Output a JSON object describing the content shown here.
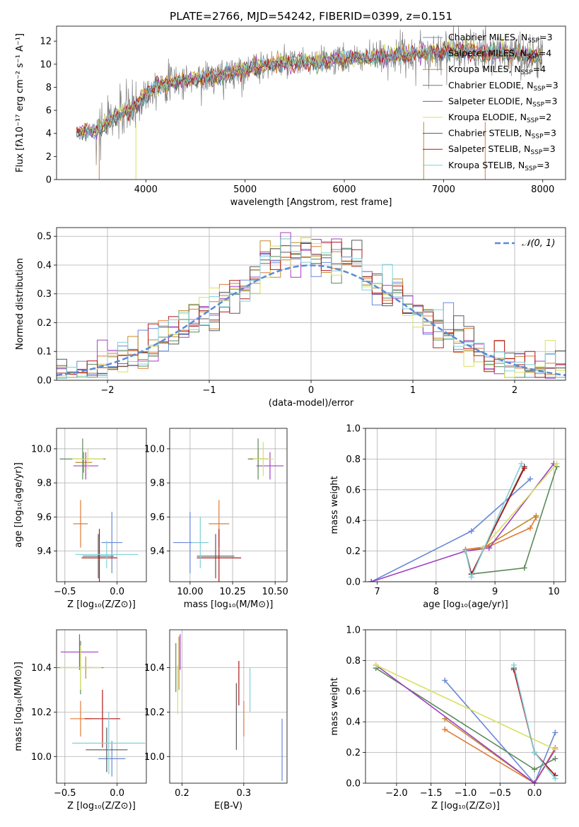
{
  "colors": [
    "#6a88d8",
    "#e07a36",
    "#c28a2a",
    "#5a8a5a",
    "#a040c0",
    "#d8e060",
    "#585858",
    "#b01818",
    "#80d0d8"
  ],
  "chart_data": [
    {
      "type": "line",
      "title": "PLATE=2766, MJD=54242, FIBERID=0399, z=0.151",
      "xlabel": "wavelength [Angstrom, rest frame]",
      "ylabel": "Flux [fλ10⁻¹⁷ erg cm⁻² s⁻¹ A⁻¹]",
      "xlim": [
        3100,
        8230
      ],
      "ylim": [
        0,
        13.3
      ],
      "xticks": [
        4000,
        5000,
        6000,
        7000,
        8000
      ],
      "yticks": [
        0,
        2,
        4,
        6,
        8,
        10,
        12
      ],
      "grid": false,
      "legend_position": "top-right",
      "spectrum_anchors": [
        [
          3300,
          4.1
        ],
        [
          3500,
          4.2
        ],
        [
          3700,
          5.5
        ],
        [
          3900,
          6.3
        ],
        [
          4000,
          7.5
        ],
        [
          4100,
          8.1
        ],
        [
          4300,
          8.5
        ],
        [
          4500,
          8.7
        ],
        [
          4700,
          8.9
        ],
        [
          4900,
          9.4
        ],
        [
          5100,
          9.7
        ],
        [
          5300,
          10.0
        ],
        [
          5500,
          10.1
        ],
        [
          5800,
          10.2
        ],
        [
          6000,
          10.4
        ],
        [
          6300,
          10.6
        ],
        [
          6600,
          10.8
        ],
        [
          6800,
          11.0
        ],
        [
          7000,
          11.1
        ],
        [
          7200,
          11.2
        ],
        [
          7400,
          11.0
        ],
        [
          7600,
          11.0
        ],
        [
          7800,
          10.8
        ],
        [
          8000,
          10.6
        ]
      ],
      "legend": [
        {
          "prefix": "Chabrier MILES, N",
          "sub": "SSP",
          "suffix": "=3"
        },
        {
          "prefix": "Salpeter MILES, N",
          "sub": "SSP",
          "suffix": "=4"
        },
        {
          "prefix": "Kroupa MILES, N",
          "sub": "SSP",
          "suffix": "=4"
        },
        {
          "prefix": "Chabrier ELODIE, N",
          "sub": "SSP",
          "suffix": "=3"
        },
        {
          "prefix": "Salpeter ELODIE, N",
          "sub": "SSP",
          "suffix": "=3"
        },
        {
          "prefix": "Kroupa ELODIE, N",
          "sub": "SSP",
          "suffix": "=2"
        },
        {
          "prefix": "Chabrier STELIB, N",
          "sub": "SSP",
          "suffix": "=3"
        },
        {
          "prefix": "Salpeter STELIB, N",
          "sub": "SSP",
          "suffix": "=3"
        },
        {
          "prefix": "Kroupa STELIB, N",
          "sub": "SSP",
          "suffix": "=3"
        }
      ]
    },
    {
      "type": "histogram",
      "xlabel": "(data-model)/error",
      "ylabel": "Normed distribution",
      "xlim": [
        -2.5,
        2.5
      ],
      "ylim": [
        0,
        0.53
      ],
      "xticks": [
        -2,
        -1,
        0,
        1,
        2
      ],
      "yticks": [
        0.0,
        0.1,
        0.2,
        0.3,
        0.4,
        0.5
      ],
      "grid": true,
      "legend": "𝒩(0, 1)",
      "legend_position": "top-right",
      "bin_width": 0.1
    },
    {
      "type": "errorbar",
      "xlabel": "Z [log₁₀(Z/Z⊙)]",
      "ylabel": "age  [log₁₀(age/yr)]",
      "xlim": [
        -0.58,
        0.28
      ],
      "ylim": [
        9.22,
        10.12
      ],
      "xticks": [
        -0.5,
        0.0
      ],
      "yticks": [
        9.4,
        9.6,
        9.8,
        10.0
      ],
      "grid": true,
      "points": [
        {
          "x": -0.05,
          "y": 9.45,
          "xerr": 0.1,
          "yerr": 0.18
        },
        {
          "x": -0.35,
          "y": 9.56,
          "xerr": 0.07,
          "yerr": 0.14
        },
        {
          "x": -0.32,
          "y": 9.92,
          "xerr": 0.08,
          "yerr": 0.06
        },
        {
          "x": -0.33,
          "y": 9.94,
          "xerr": 0.22,
          "yerr": 0.12
        },
        {
          "x": -0.3,
          "y": 9.9,
          "xerr": 0.12,
          "yerr": 0.08
        },
        {
          "x": -0.28,
          "y": 9.94,
          "xerr": 0.15,
          "yerr": 0.06
        },
        {
          "x": -0.18,
          "y": 9.37,
          "xerr": 0.15,
          "yerr": 0.13
        },
        {
          "x": -0.17,
          "y": 9.36,
          "xerr": 0.17,
          "yerr": 0.17
        },
        {
          "x": -0.1,
          "y": 9.38,
          "xerr": 0.3,
          "yerr": 0.08
        }
      ]
    },
    {
      "type": "errorbar",
      "xlabel": "mass [log₁₀(M/M⊙)]",
      "ylabel": "",
      "xlim": [
        9.88,
        10.57
      ],
      "ylim": [
        9.22,
        10.12
      ],
      "xticks": [
        10.0,
        10.25,
        10.5
      ],
      "yticks": [
        9.4,
        9.6,
        9.8,
        10.0
      ],
      "grid": true,
      "points": [
        {
          "x": 10.0,
          "y": 9.45,
          "xerr": 0.1,
          "yerr": 0.18
        },
        {
          "x": 10.17,
          "y": 9.56,
          "xerr": 0.06,
          "yerr": 0.14
        },
        {
          "x": 10.4,
          "y": 9.94,
          "xerr": 0.05,
          "yerr": 0.06
        },
        {
          "x": 10.4,
          "y": 9.94,
          "xerr": 0.06,
          "yerr": 0.12
        },
        {
          "x": 10.47,
          "y": 9.9,
          "xerr": 0.08,
          "yerr": 0.08
        },
        {
          "x": 10.43,
          "y": 9.94,
          "xerr": 0.06,
          "yerr": 0.1
        },
        {
          "x": 10.15,
          "y": 9.37,
          "xerr": 0.11,
          "yerr": 0.13
        },
        {
          "x": 10.17,
          "y": 9.36,
          "xerr": 0.13,
          "yerr": 0.17
        },
        {
          "x": 10.06,
          "y": 9.45,
          "xerr": 0.05,
          "yerr": 0.15
        }
      ]
    },
    {
      "type": "line",
      "xlabel": "age  [log₁₀(age/yr)]",
      "ylabel": "mass weight",
      "xlim": [
        6.8,
        10.2
      ],
      "ylim": [
        0,
        1.0
      ],
      "xticks": [
        7,
        8,
        9,
        10
      ],
      "yticks": [
        0.0,
        0.2,
        0.4,
        0.6,
        0.8,
        1.0
      ],
      "grid": true,
      "series": [
        {
          "x": [
            6.9,
            8.6,
            9.6
          ],
          "y": [
            0.0,
            0.33,
            0.67
          ]
        },
        {
          "x": [
            8.5,
            8.9,
            9.6,
            9.7
          ],
          "y": [
            0.21,
            0.23,
            0.35,
            0.42
          ]
        },
        {
          "x": [
            8.5,
            8.8,
            9.7
          ],
          "y": [
            0.2,
            0.22,
            0.43
          ]
        },
        {
          "x": [
            8.5,
            8.6,
            9.5,
            10.05
          ],
          "y": [
            0.2,
            0.05,
            0.09,
            0.75
          ]
        },
        {
          "x": [
            6.9,
            8.5,
            8.9,
            10.0
          ],
          "y": [
            0.0,
            0.2,
            0.22,
            0.77
          ]
        },
        {
          "x": [
            8.8,
            10.05
          ],
          "y": [
            0.22,
            0.77
          ]
        },
        {
          "x": [
            8.5,
            8.6,
            9.5
          ],
          "y": [
            0.2,
            0.05,
            0.75
          ]
        },
        {
          "x": [
            8.5,
            8.6,
            9.5
          ],
          "y": [
            0.2,
            0.05,
            0.74
          ]
        },
        {
          "x": [
            8.5,
            8.6,
            9.45
          ],
          "y": [
            0.2,
            0.03,
            0.77
          ]
        }
      ]
    },
    {
      "type": "errorbar",
      "xlabel": "Z [log₁₀(Z/Z⊙)]",
      "ylabel": "mass [log₁₀(M/M⊙)]",
      "xlim": [
        -0.58,
        0.28
      ],
      "ylim": [
        9.88,
        10.57
      ],
      "xticks": [
        -0.5,
        0.0
      ],
      "yticks": [
        10.0,
        10.2,
        10.4
      ],
      "grid": true,
      "points": [
        {
          "x": -0.05,
          "y": 9.99,
          "xerr": 0.13,
          "yerr": 0.08
        },
        {
          "x": -0.35,
          "y": 10.17,
          "xerr": 0.1,
          "yerr": 0.08
        },
        {
          "x": -0.3,
          "y": 10.4,
          "xerr": 0.05,
          "yerr": 0.05
        },
        {
          "x": -0.35,
          "y": 10.4,
          "xerr": 0.22,
          "yerr": 0.12
        },
        {
          "x": -0.36,
          "y": 10.47,
          "xerr": 0.18,
          "yerr": 0.08
        },
        {
          "x": -0.35,
          "y": 10.4,
          "xerr": 0.2,
          "yerr": 0.1
        },
        {
          "x": -0.1,
          "y": 10.03,
          "xerr": 0.2,
          "yerr": 0.1
        },
        {
          "x": -0.14,
          "y": 10.17,
          "xerr": 0.17,
          "yerr": 0.13
        },
        {
          "x": -0.08,
          "y": 10.06,
          "xerr": 0.35,
          "yerr": 0.14
        }
      ]
    },
    {
      "type": "errorbar",
      "xlabel": "E(B-V)",
      "ylabel": "",
      "xlim": [
        0.18,
        0.37
      ],
      "ylim": [
        9.88,
        10.57
      ],
      "xticks": [
        0.2,
        0.3
      ],
      "yticks": [
        10.0,
        10.2,
        10.4
      ],
      "grid": true,
      "points": [
        {
          "x": 0.362,
          "y": 10.03,
          "xerr": 0,
          "yerr": 0.14
        },
        {
          "x": 0.3,
          "y": 10.17,
          "xerr": 0,
          "yerr": 0.08
        },
        {
          "x": 0.195,
          "y": 10.42,
          "xerr": 0,
          "yerr": 0.12
        },
        {
          "x": 0.19,
          "y": 10.4,
          "xerr": 0,
          "yerr": 0.11
        },
        {
          "x": 0.197,
          "y": 10.47,
          "xerr": 0,
          "yerr": 0.08
        },
        {
          "x": 0.193,
          "y": 10.3,
          "xerr": 0,
          "yerr": 0.11
        },
        {
          "x": 0.288,
          "y": 10.18,
          "xerr": 0,
          "yerr": 0.15
        },
        {
          "x": 0.292,
          "y": 10.33,
          "xerr": 0,
          "yerr": 0.1
        },
        {
          "x": 0.31,
          "y": 10.3,
          "xerr": 0,
          "yerr": 0.1
        }
      ]
    },
    {
      "type": "line",
      "xlabel": "Z [log₁₀(Z/Z⊙)]",
      "ylabel": "mass weight",
      "xlim": [
        -2.45,
        0.45
      ],
      "ylim": [
        0,
        1.0
      ],
      "xticks": [
        -2.0,
        -1.5,
        -1.0,
        -0.5,
        0.0
      ],
      "yticks": [
        0.0,
        0.2,
        0.4,
        0.6,
        0.8,
        1.0
      ],
      "grid": true,
      "series": [
        {
          "x": [
            -1.3,
            0.0,
            0.3
          ],
          "y": [
            0.67,
            0.0,
            0.33
          ]
        },
        {
          "x": [
            -1.3,
            0.0,
            0.3
          ],
          "y": [
            0.35,
            0.0,
            0.23
          ]
        },
        {
          "x": [
            -1.3,
            0.0,
            0.3
          ],
          "y": [
            0.42,
            0.0,
            0.22
          ]
        },
        {
          "x": [
            -2.3,
            0.0,
            0.3
          ],
          "y": [
            0.75,
            0.09,
            0.16
          ]
        },
        {
          "x": [
            -2.3,
            0.0,
            0.3
          ],
          "y": [
            0.77,
            0.0,
            0.22
          ]
        },
        {
          "x": [
            -2.3,
            0.3
          ],
          "y": [
            0.77,
            0.22
          ]
        },
        {
          "x": [
            -0.3,
            0.0,
            0.3
          ],
          "y": [
            0.75,
            0.2,
            0.05
          ]
        },
        {
          "x": [
            -0.3,
            0.0,
            0.3
          ],
          "y": [
            0.74,
            0.2,
            0.05
          ]
        },
        {
          "x": [
            -0.3,
            0.0,
            0.3
          ],
          "y": [
            0.77,
            0.2,
            0.03
          ]
        }
      ]
    }
  ]
}
